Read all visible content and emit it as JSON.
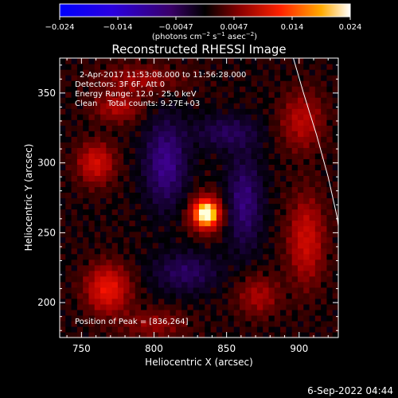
{
  "chart_data": {
    "type": "heatmap",
    "title": "Reconstructed RHESSI Image",
    "xlabel": "Heliocentric X (arcsec)",
    "ylabel": "Heliocentric Y (arcsec)",
    "xlim": [
      735,
      927
    ],
    "ylim": [
      175,
      375
    ],
    "xticks": [
      750,
      800,
      850,
      900
    ],
    "yticks": [
      200,
      250,
      300,
      350
    ],
    "annotations": [
      "2-Apr-2017 11:53:08.000 to 11:56:28.000",
      "Detectors: 3F 6F, Att 0",
      "Energy Range: 12.0 - 25.0 keV",
      "Clean    Total counts: 9.27E+03"
    ],
    "peak_label": "Position of Peak = [836,264]",
    "peak": [
      836,
      264
    ],
    "colorbar": {
      "ticks": [
        "−0.024",
        "−0.014",
        "−0.0047",
        "0.0047",
        "0.014",
        "0.024"
      ],
      "unit_main": "(photons cm",
      "unit_exp1": "−2",
      "unit_mid": " s",
      "unit_exp2": "−1",
      "unit_after": " asec",
      "unit_exp3": "−2",
      "unit_close": ")"
    },
    "limb_curve": [
      [
        896,
        375
      ],
      [
        903,
        350
      ],
      [
        912,
        320
      ],
      [
        920,
        290
      ],
      [
        926,
        262
      ],
      [
        927,
        255
      ]
    ],
    "grid": false
  },
  "footer": {
    "timestamp": "6-Sep-2022 04:44"
  }
}
